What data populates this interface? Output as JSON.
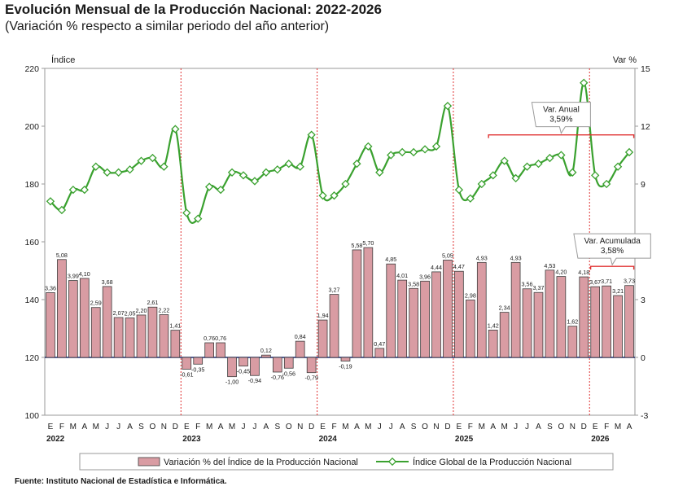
{
  "header": {
    "title": "Evolución Mensual de la Producción Nacional: 2022-2026",
    "subtitle": "(Variación % respecto a similar periodo del año anterior)"
  },
  "source": "Fuente: Instituto Nacional de Estadística e Informática.",
  "colors": {
    "bar_fill": "#d99ca3",
    "bar_stroke": "#3d3d3d",
    "line": "#3aa12f",
    "marker_fill": "#ffffff",
    "separator": "#e03030",
    "bracket": "#e03030"
  },
  "chart_data": {
    "type": "bar+line",
    "left_axis": {
      "label": "Índice",
      "min": 100,
      "max": 220,
      "ticks": [
        "100",
        "120",
        "140",
        "160",
        "180",
        "200",
        "220"
      ]
    },
    "right_axis": {
      "label": "Var %",
      "min": -3,
      "max": 15,
      "ticks": [
        "-3",
        "0",
        "3",
        "6",
        "9",
        "12",
        "15"
      ]
    },
    "months": [
      "E",
      "F",
      "M",
      "A",
      "M",
      "J",
      "J",
      "A",
      "S",
      "O",
      "N",
      "D",
      "E",
      "F",
      "M",
      "A",
      "M",
      "J",
      "J",
      "A",
      "S",
      "O",
      "N",
      "D",
      "E",
      "F",
      "M",
      "A",
      "M",
      "J",
      "J",
      "A",
      "S",
      "O",
      "N",
      "D",
      "E",
      "F",
      "M",
      "A",
      "M",
      "J",
      "J",
      "A",
      "S",
      "O",
      "N",
      "D",
      "E",
      "F",
      "M",
      "A"
    ],
    "years": [
      {
        "label": "2022",
        "start_index": 0
      },
      {
        "label": "2023",
        "start_index": 12
      },
      {
        "label": "2024",
        "start_index": 24
      },
      {
        "label": "2025",
        "start_index": 36
      },
      {
        "label": "2026",
        "start_index": 48
      }
    ],
    "series": [
      {
        "name": "Variación % del Índice de la Producción Nacional",
        "axis": "right",
        "kind": "bar",
        "values": [
          3.36,
          5.08,
          3.99,
          4.1,
          2.59,
          3.68,
          2.07,
          2.05,
          2.2,
          2.61,
          2.22,
          1.41,
          -0.61,
          -0.35,
          0.76,
          0.76,
          -1.0,
          -0.45,
          -0.94,
          0.12,
          -0.76,
          -0.56,
          0.84,
          -0.79,
          1.94,
          3.27,
          -0.19,
          5.58,
          5.7,
          0.47,
          4.85,
          4.01,
          3.58,
          3.96,
          4.44,
          5.05,
          4.47,
          2.98,
          4.93,
          1.42,
          2.34,
          4.93,
          3.56,
          3.37,
          4.53,
          4.2,
          1.62,
          4.18,
          3.67,
          3.71,
          3.21,
          3.73
        ],
        "labels": [
          "3,36",
          "5,08",
          "3,99",
          "4,10",
          "2,59",
          "3,68",
          "2,07",
          "2,05",
          "2,20",
          "2,61",
          "2,22",
          "1,41",
          "-0,61",
          "-0,35",
          "0,76",
          "0,76",
          "-1,00",
          "-0,45",
          "-0,94",
          "0,12",
          "-0,76",
          "-0,56",
          "0,84",
          "-0,79",
          "1,94",
          "3,27",
          "-0,19",
          "5,58",
          "5,70",
          "0,47",
          "4,85",
          "4,01",
          "3,58",
          "3,96",
          "4,44",
          "5,05",
          "4,47",
          "2,98",
          "4,93",
          "1,42",
          "2,34",
          "4,93",
          "3,56",
          "3,37",
          "4,53",
          "4,20",
          "1,62",
          "4,18",
          "3,67",
          "3,71",
          "3,21",
          "3,73"
        ]
      },
      {
        "name": "Índice Global de la Producción Nacional",
        "axis": "left",
        "kind": "line",
        "values": [
          174,
          171,
          178,
          178,
          186,
          184,
          184,
          185,
          188,
          189,
          186,
          199,
          170,
          168,
          179,
          178,
          184,
          183,
          181,
          184,
          185,
          187,
          186,
          197,
          176,
          176,
          180,
          187,
          193,
          184,
          190,
          191,
          191,
          192,
          193,
          207,
          178,
          175,
          180,
          183,
          188,
          182,
          186,
          187,
          189,
          190,
          184,
          215,
          183,
          180,
          186,
          191
        ]
      }
    ],
    "annotations": [
      {
        "text_lines": [
          "Var. Anual",
          "3,59%"
        ],
        "from_index": 39,
        "to_index": 51,
        "bracket_axis": "left",
        "bracket_value": 197
      },
      {
        "text_lines": [
          "Var. Acumulada",
          "3,58%"
        ],
        "from_index": 48,
        "to_index": 51,
        "bracket_axis": "left",
        "bracket_value": 151.5
      }
    ],
    "legend_position": "bottom",
    "grid": false
  }
}
